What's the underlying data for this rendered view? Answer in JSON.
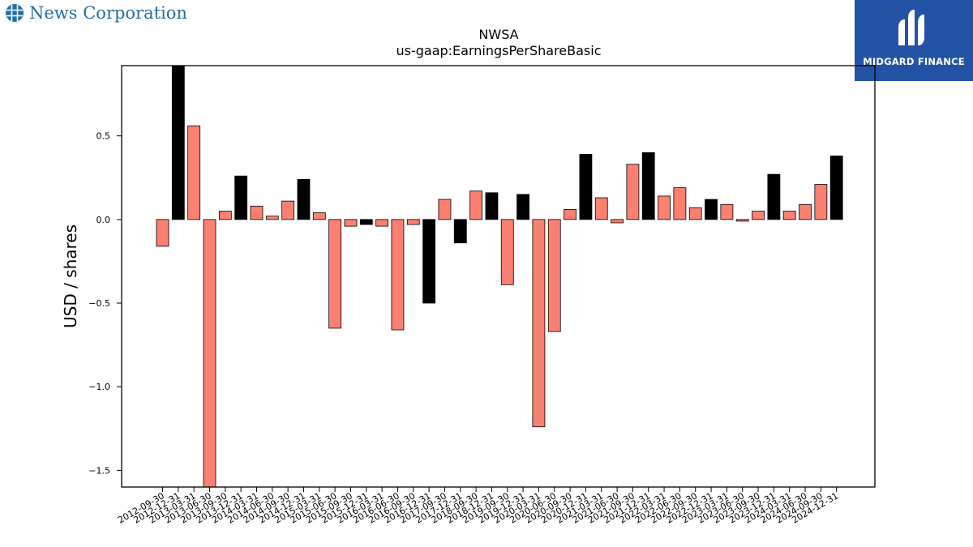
{
  "branding": {
    "left_logo_text": "News Corporation",
    "left_logo_icon": "globe-icon",
    "left_logo_color": "#1f6fa8",
    "right_logo_text": "MIDGARD FINANCE",
    "right_logo_icon": "midgard-mark-icon",
    "right_logo_bg": "#2453a6"
  },
  "chart_data": {
    "type": "bar",
    "title": "NWSA",
    "subtitle": "us-gaap:EarningsPerShareBasic",
    "xlabel": "",
    "ylabel": "USD / shares",
    "ylim": [
      -1.6,
      0.92
    ],
    "yticks": [
      -1.5,
      -1.0,
      -0.5,
      0.0,
      0.5
    ],
    "ytick_labels": [
      "−1.5",
      "−1.0",
      "−0.5",
      "0.0",
      "0.5"
    ],
    "grid": false,
    "colors": {
      "quarter": "#fa8072",
      "year_end": "#000000",
      "edge": "#000000"
    },
    "categories": [
      "2012-09-30",
      "2012-12-31",
      "2013-03-31",
      "2013-06-30",
      "2013-09-30",
      "2013-12-31",
      "2014-03-31",
      "2014-06-30",
      "2014-09-30",
      "2014-12-31",
      "2015-03-31",
      "2015-06-30",
      "2015-09-30",
      "2015-12-31",
      "2016-03-31",
      "2016-06-30",
      "2016-09-30",
      "2016-12-31",
      "2017-09-30",
      "2017-12-31",
      "2018-09-30",
      "2018-12-31",
      "2019-09-30",
      "2019-12-31",
      "2020-03-31",
      "2020-06-30",
      "2020-09-30",
      "2020-12-31",
      "2021-03-31",
      "2021-06-30",
      "2021-09-30",
      "2021-12-31",
      "2022-03-31",
      "2022-06-30",
      "2022-09-30",
      "2022-12-31",
      "2023-03-31",
      "2023-06-30",
      "2023-09-30",
      "2023-12-31",
      "2024-03-31",
      "2024-06-30",
      "2024-09-30",
      "2024-12-31"
    ],
    "values": [
      -0.16,
      1.02,
      0.56,
      -1.65,
      0.05,
      0.26,
      0.08,
      0.02,
      0.11,
      0.24,
      0.04,
      -0.65,
      -0.04,
      -0.03,
      -0.04,
      -0.66,
      -0.03,
      -0.5,
      0.12,
      -0.14,
      0.17,
      0.16,
      -0.39,
      0.15,
      -1.24,
      -0.67,
      0.06,
      0.39,
      0.13,
      -0.02,
      0.33,
      0.4,
      0.14,
      0.19,
      0.07,
      0.12,
      0.09,
      -0.01,
      0.05,
      0.27,
      0.05,
      0.09,
      0.21,
      0.38
    ],
    "highlight": [
      "quarter",
      "year_end",
      "quarter",
      "quarter",
      "quarter",
      "year_end",
      "quarter",
      "quarter",
      "quarter",
      "year_end",
      "quarter",
      "quarter",
      "quarter",
      "year_end",
      "quarter",
      "quarter",
      "quarter",
      "year_end",
      "quarter",
      "year_end",
      "quarter",
      "year_end",
      "quarter",
      "year_end",
      "quarter",
      "quarter",
      "quarter",
      "year_end",
      "quarter",
      "quarter",
      "quarter",
      "year_end",
      "quarter",
      "quarter",
      "quarter",
      "year_end",
      "quarter",
      "quarter",
      "quarter",
      "year_end",
      "quarter",
      "quarter",
      "quarter",
      "year_end"
    ]
  }
}
